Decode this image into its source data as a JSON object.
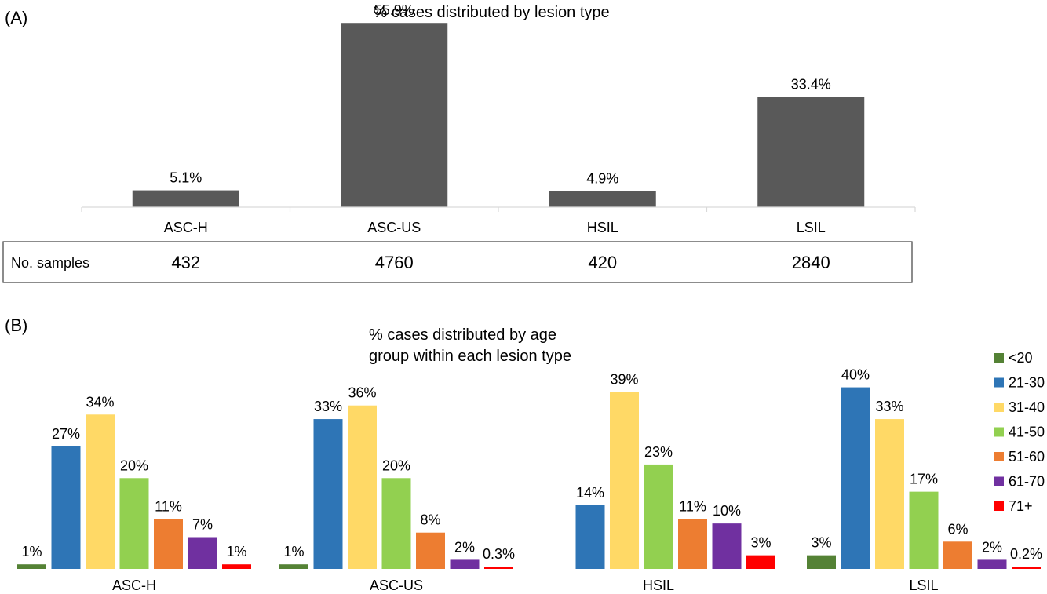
{
  "panel_a": {
    "panel_label": "(A)",
    "table_header": "No. samples"
  },
  "panel_b": {
    "panel_label": "(B)"
  },
  "chart_data": [
    {
      "type": "bar",
      "title": "% cases distributed by lesion type",
      "categories": [
        "ASC-H",
        "ASC-US",
        "HSIL",
        "LSIL"
      ],
      "values": [
        5.1,
        55.9,
        4.9,
        33.4
      ],
      "value_labels": [
        "5.1%",
        "55.9%",
        "4.9%",
        "33.4%"
      ],
      "bar_color": "#595959",
      "ylim": [
        0,
        60
      ],
      "grid": false,
      "table": {
        "row_label": "No. samples",
        "values": [
          "432",
          "4760",
          "420",
          "2840"
        ]
      }
    },
    {
      "type": "bar",
      "title_lines": [
        "% cases distributed by age",
        "group within each lesion type"
      ],
      "categories": [
        "ASC-H",
        "ASC-US",
        "HSIL",
        "LSIL"
      ],
      "legend_position": "right",
      "ylim": [
        0,
        42
      ],
      "grid": false,
      "series": [
        {
          "name": "<20",
          "color": "#548235",
          "values": [
            1,
            1,
            0,
            3
          ],
          "labels": [
            "1%",
            "1%",
            "",
            "3%"
          ]
        },
        {
          "name": "21-30",
          "color": "#2E75B6",
          "values": [
            27,
            33,
            14,
            40
          ],
          "labels": [
            "27%",
            "33%",
            "14%",
            "40%"
          ]
        },
        {
          "name": "31-40",
          "color": "#FFD966",
          "values": [
            34,
            36,
            39,
            33
          ],
          "labels": [
            "34%",
            "36%",
            "39%",
            "33%"
          ]
        },
        {
          "name": "41-50",
          "color": "#92D050",
          "values": [
            20,
            20,
            23,
            17
          ],
          "labels": [
            "20%",
            "20%",
            "23%",
            "17%"
          ]
        },
        {
          "name": "51-60",
          "color": "#ED7D31",
          "values": [
            11,
            8,
            11,
            6
          ],
          "labels": [
            "11%",
            "8%",
            "11%",
            "6%"
          ]
        },
        {
          "name": "61-70",
          "color": "#7030A0",
          "values": [
            7,
            2,
            10,
            2
          ],
          "labels": [
            "7%",
            "2%",
            "10%",
            "2%"
          ]
        },
        {
          "name": "71+",
          "color": "#FF0000",
          "values": [
            1,
            0.3,
            3,
            0.2
          ],
          "labels": [
            "1%",
            "0.3%",
            "3%",
            "0.2%"
          ]
        }
      ]
    }
  ]
}
